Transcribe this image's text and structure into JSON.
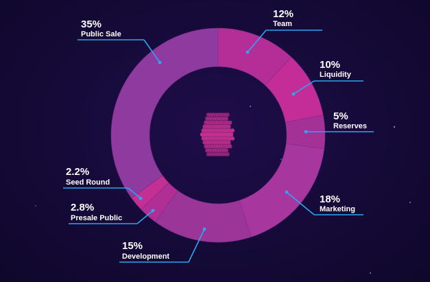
{
  "chart_data": {
    "type": "pie",
    "variant": "donut",
    "title": "",
    "slices": [
      {
        "label": "Team",
        "value": 12,
        "pct_text": "12%",
        "color": "#b52d96"
      },
      {
        "label": "Liquidity",
        "value": 10,
        "pct_text": "10%",
        "color": "#c42c98"
      },
      {
        "label": "Reserves",
        "value": 5,
        "pct_text": "5%",
        "color": "#a43196"
      },
      {
        "label": "Marketing",
        "value": 18,
        "pct_text": "18%",
        "color": "#a7379f"
      },
      {
        "label": "Development",
        "value": 15,
        "pct_text": "15%",
        "color": "#9c3598"
      },
      {
        "label": "Presale Public",
        "value": 2.8,
        "pct_text": "2.8%",
        "color": "#b12e95"
      },
      {
        "label": "Seed Round",
        "value": 2.2,
        "pct_text": "2.2%",
        "color": "#c32f93"
      },
      {
        "label": "Public Sale",
        "value": 35,
        "pct_text": "35%",
        "color": "#8f3a9e"
      }
    ],
    "leader_color": "#2aa8f0",
    "center_logo_color": "#c2308f"
  }
}
